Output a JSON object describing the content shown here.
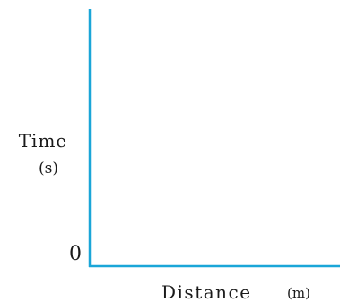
{
  "chart_data": {
    "type": "line",
    "title": "",
    "xlabel": "Distance",
    "xunit": "(m)",
    "ylabel": "Time",
    "yunit": "(s)",
    "origin_label": "0",
    "series": [],
    "grid": false,
    "axis_color": "#1aa6d8"
  }
}
